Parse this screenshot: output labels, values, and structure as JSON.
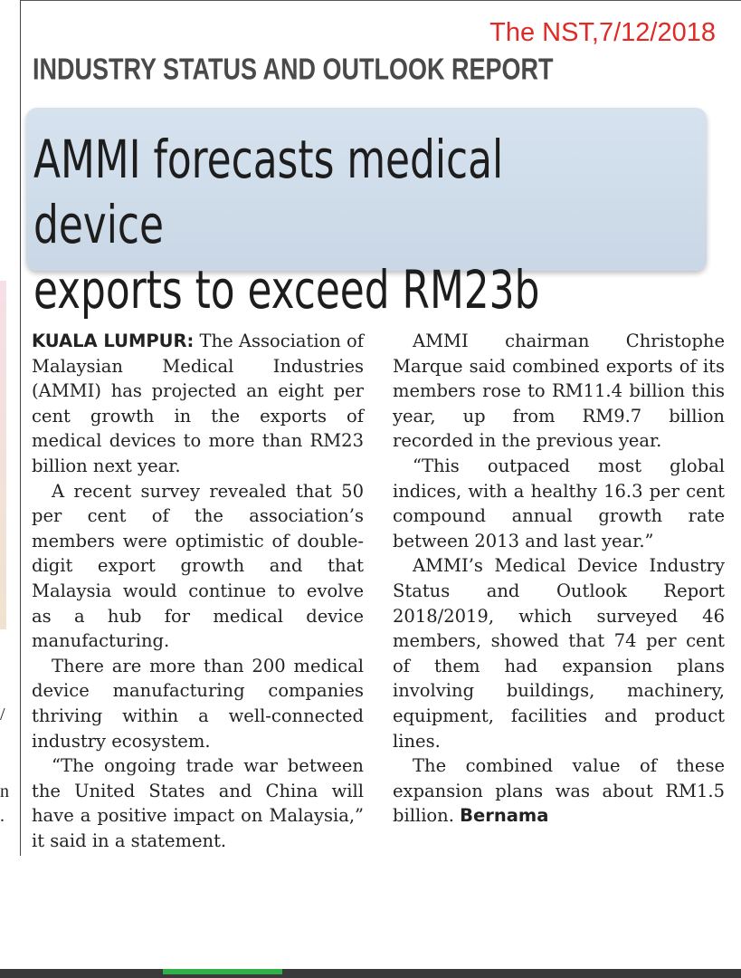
{
  "source_note": "The NST,7/12/2018",
  "kicker": "INDUSTRY STATUS AND OUTLOOK REPORT",
  "headline": "AMMI forecasts medical device\nexports to exceed RM23b",
  "article": {
    "dateline": "KUALA LUMPUR:",
    "column1": [
      "The Association of Malaysian Medical Industries (AMMI) has projected an eight per cent growth in the exports of medical devices to more than RM23 billion next year.",
      "A recent survey revealed that 50 per cent of the association’s members were optimistic of double-digit export growth and that Malaysia would continue to evolve as a hub for medical device manufacturing.",
      "There are more than 200 medical device manufacturing companies thriving within a well-connected industry ecosystem.",
      "“The ongoing trade war between the United States and China will have a positive impact on Malaysia,” it said in a statement."
    ],
    "column2": [
      "AMMI chairman Christophe Marque said combined exports of its members rose to RM11.4 billion this year, up from RM9.7 billion recorded in the previous year.",
      "“This outpaced most global indices, with a healthy 16.3 per cent compound annual growth rate between 2013 and last year.”",
      "AMMI’s Medical Device Industry Status and Outlook Report 2018/2019, which surveyed 46 members, showed that 74 per cent of them had expansion plans involving buildings, machinery, equipment, facilities and product lines.",
      "The combined value of these expansion plans was about RM1.5 billion."
    ],
    "byline": "Bernama"
  },
  "edge_fragments": [
    "/",
    "n",
    "."
  ]
}
